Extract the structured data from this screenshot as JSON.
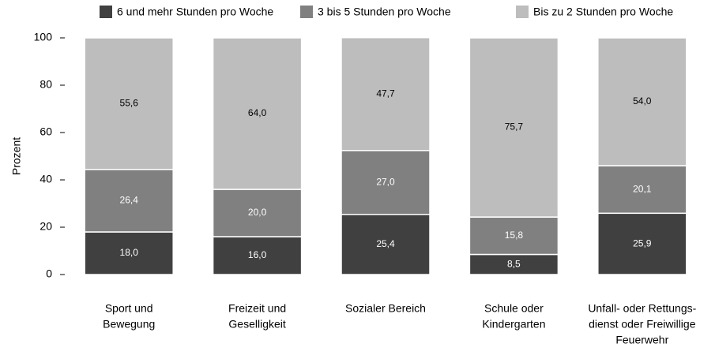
{
  "chart_data": {
    "type": "stacked-bar",
    "categories": [
      [
        "Sport und",
        "Bewegung"
      ],
      [
        "Freizeit und",
        "Geselligkeit"
      ],
      [
        "Sozialer Bereich"
      ],
      [
        "Schule oder",
        "Kindergarten"
      ],
      [
        "Unfall- oder Rettungs-",
        "dienst oder Freiwillige",
        "Feuerwehr"
      ]
    ],
    "series": [
      {
        "name": "6 und mehr Stunden pro Woche",
        "color": "#404040",
        "label_color": "#ffffff",
        "values": [
          18.0,
          16.0,
          25.4,
          8.5,
          25.9
        ],
        "value_labels": [
          "18,0",
          "16,0",
          "25,4",
          "8,5",
          "25,9"
        ]
      },
      {
        "name": "3 bis 5 Stunden pro Woche",
        "color": "#808080",
        "label_color": "#ffffff",
        "values": [
          26.4,
          20.0,
          27.0,
          15.8,
          20.1
        ],
        "value_labels": [
          "26,4",
          "20,0",
          "27,0",
          "15,8",
          "20,1"
        ]
      },
      {
        "name": "Bis zu 2 Stunden pro Woche",
        "color": "#bdbdbd",
        "label_color": "#000000",
        "values": [
          55.6,
          64.0,
          47.7,
          75.7,
          54.0
        ],
        "value_labels": [
          "55,6",
          "64,0",
          "47,7",
          "75,7",
          "54,0"
        ]
      }
    ],
    "y_label": "Prozent",
    "ylim": [
      0,
      100
    ],
    "yticks": [
      0,
      20,
      40,
      60,
      80,
      100
    ]
  }
}
